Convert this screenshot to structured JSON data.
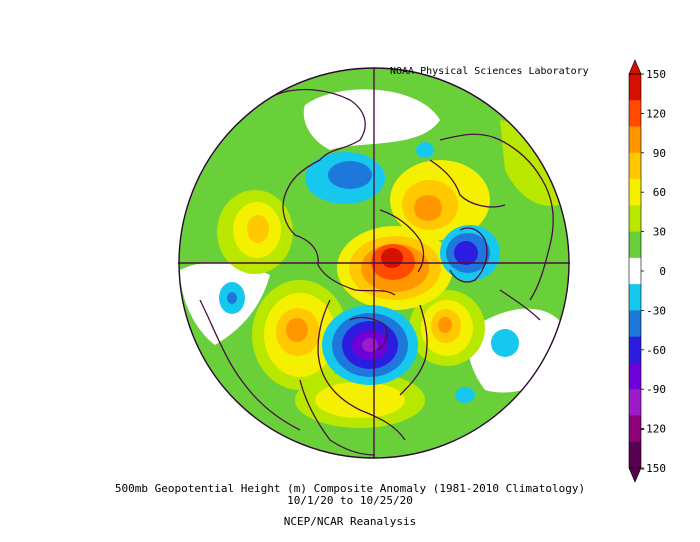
{
  "figure": {
    "credit": "NOAA Physical Sciences Laboratory",
    "title": "500mb Geopotential Height (m) Composite Anomaly (1981-2010 Climatology)",
    "date_range": "10/1/20  to 10/25/20",
    "source": "NCEP/NCAR Reanalysis"
  },
  "legend": {
    "ticks": [
      "150",
      "120",
      "90",
      "60",
      "30",
      "0",
      "-30",
      "-60",
      "-90",
      "-120",
      "-150"
    ],
    "colors": [
      "#d41000",
      "#ff4a00",
      "#ff9600",
      "#ffc800",
      "#f5f000",
      "#b8e800",
      "#6ad03a",
      "#ffffff",
      "#17c8ee",
      "#1e78dc",
      "#2b1ce0",
      "#7000d8",
      "#9c1ac8",
      "#8c007a",
      "#5a0050"
    ]
  },
  "map_features": {
    "projection": "north-polar-stereographic",
    "anomaly_centers": [
      {
        "region": "north-pacific-gulf-of-alaska",
        "sign": "positive"
      },
      {
        "region": "arctic-ocean-siberia",
        "sign": "positive"
      },
      {
        "region": "scandinavia-northern-europe",
        "sign": "negative"
      },
      {
        "region": "north-atlantic-labrador",
        "sign": "negative"
      },
      {
        "region": "western-north-pacific",
        "sign": "negative"
      },
      {
        "region": "north-atlantic-iberia",
        "sign": "positive"
      },
      {
        "region": "east-asia",
        "sign": "positive"
      }
    ]
  }
}
